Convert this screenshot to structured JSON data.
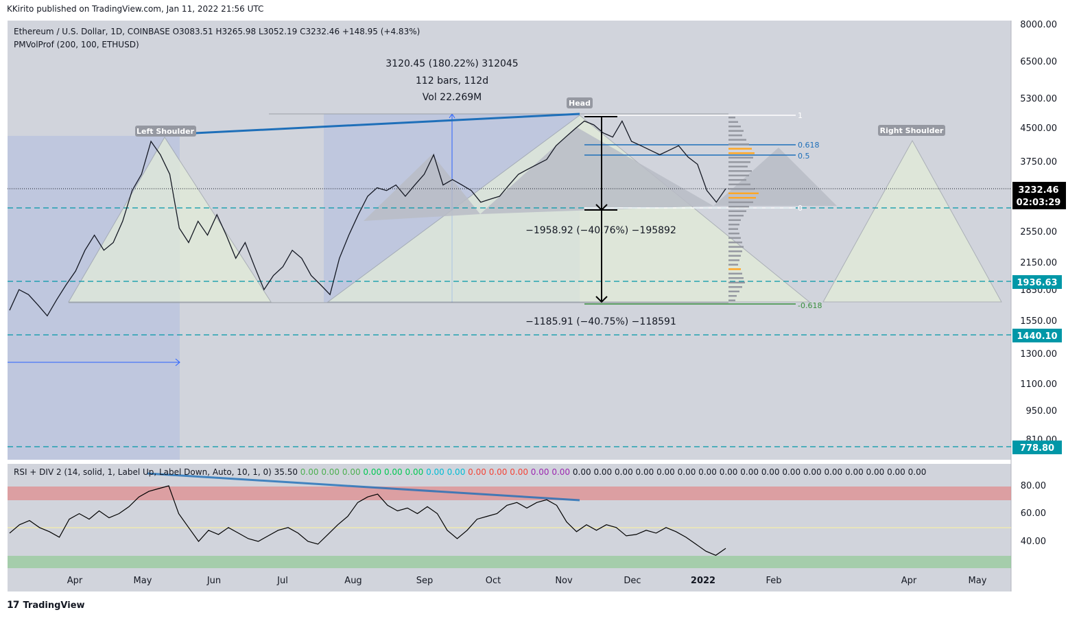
{
  "publisher_line": "KKirito published on TradingView.com, Jan 11, 2022 21:56 UTC",
  "symbol_line": "Ethereum / U.S. Dollar, 1D, COINBASE  O3083.51  H3265.98  L3052.19  C3232.46  +148.95 (+4.83%)",
  "indicator_line": "PMVolProf (200, 100, ETHUSD)",
  "rsi_title": "RSI + DIV 2 (14, solid, 1, Label Up, Label Down, Auto, 10, 1, 0)",
  "rsi_values": [
    {
      "text": "35.50",
      "color": "#131722"
    },
    {
      "text": "0.00",
      "color": "#4caf50"
    },
    {
      "text": "0.00",
      "color": "#4caf50"
    },
    {
      "text": "0.00",
      "color": "#4caf50"
    },
    {
      "text": "0.00",
      "color": "#00c853"
    },
    {
      "text": "0.00",
      "color": "#00c853"
    },
    {
      "text": "0.00",
      "color": "#00c853"
    },
    {
      "text": "0.00",
      "color": "#00bcd4"
    },
    {
      "text": "0.00",
      "color": "#00bcd4"
    },
    {
      "text": "0.00",
      "color": "#f44336"
    },
    {
      "text": "0.00",
      "color": "#f44336"
    },
    {
      "text": "0.00",
      "color": "#f44336"
    },
    {
      "text": "0.00",
      "color": "#9c27b0"
    },
    {
      "text": "0.00",
      "color": "#9c27b0"
    },
    {
      "text": "0.00",
      "color": "#131722"
    },
    {
      "text": "0.00",
      "color": "#131722"
    },
    {
      "text": "0.00",
      "color": "#131722"
    },
    {
      "text": "0.00",
      "color": "#131722"
    },
    {
      "text": "0.00",
      "color": "#131722"
    },
    {
      "text": "0.00",
      "color": "#131722"
    },
    {
      "text": "0.00",
      "color": "#131722"
    },
    {
      "text": "0.00",
      "color": "#131722"
    },
    {
      "text": "0.00",
      "color": "#131722"
    },
    {
      "text": "0.00",
      "color": "#131722"
    },
    {
      "text": "0.00",
      "color": "#131722"
    },
    {
      "text": "0.00",
      "color": "#131722"
    },
    {
      "text": "0.00",
      "color": "#131722"
    },
    {
      "text": "0.00",
      "color": "#131722"
    },
    {
      "text": "0.00",
      "color": "#131722"
    },
    {
      "text": "0.00",
      "color": "#131722"
    },
    {
      "text": "0.00",
      "color": "#131722"
    }
  ],
  "annotations": {
    "measure_line1": "3120.45 (180.22%) 312045",
    "measure_line2": "112 bars, 112d",
    "measure_line3": "Vol 22.269M",
    "drop1": "−1958.92 (−40.76%) −195892",
    "drop2": "−1185.91 (−40.75%) −118591",
    "left_shoulder": "Left Shoulder",
    "head": "Head",
    "right_shoulder": "Right Shoulder",
    "fib_1": "1",
    "fib_0618": "0.618",
    "fib_05": "0.5",
    "fib_0": "0",
    "fib_neg0618": "-0.618"
  },
  "price_badges": {
    "last_price": "3232.46",
    "countdown": "02:03:29",
    "level_1": "1936.63",
    "level_2": "1440.10",
    "level_3": "778.80"
  },
  "footer_brand": "TradingView",
  "colors": {
    "pane_bg": "#d1d4dc",
    "rsi_upper_band": "#e57373",
    "rsi_lower_band": "#81c784",
    "dashed_levels": "#0097a7",
    "trend_blue": "#1e6fb9",
    "fib_blue": "#1e6fb9",
    "neg_fib_green": "#4caf50"
  },
  "chart_data": {
    "type": "line",
    "price_axis_ticks": [
      "8000.00",
      "6500.00",
      "5300.00",
      "4500.00",
      "3750.00",
      "2550.00",
      "2150.00",
      "1850.00",
      "1550.00",
      "1300.00",
      "1100.00",
      "950.00",
      "810.00"
    ],
    "rsi_axis_ticks": [
      "80.00",
      "60.00",
      "40.00"
    ],
    "time_axis_labels": [
      "Apr",
      "May",
      "Jun",
      "Jul",
      "Aug",
      "Sep",
      "Oct",
      "Nov",
      "Dec",
      "2022",
      "Feb",
      "Apr",
      "May"
    ],
    "price_scale": "log",
    "ylim": [
      700,
      8000
    ],
    "rsi_ylim": [
      20,
      90
    ],
    "series": [
      {
        "values": [
          1650,
          1850,
          1800,
          1700,
          1600,
          1750,
          1900,
          2050,
          2300,
          2500,
          2300,
          2400,
          2700,
          3200,
          3500,
          4200,
          3900,
          3500,
          2600,
          2400,
          2700,
          2500,
          2800,
          2500,
          2200,
          2400,
          2100,
          1850,
          2000,
          2100,
          2300,
          2200,
          2000,
          1900,
          1800,
          2200,
          2500,
          2800,
          3100,
          3250,
          3200,
          3300,
          3100,
          3300,
          3500,
          3900,
          3300,
          3400,
          3300,
          3200,
          3000,
          3050,
          3100,
          3300,
          3500,
          3600,
          3700,
          3800,
          4100,
          4300,
          4500,
          4700,
          4600,
          4400,
          4300,
          4700,
          4200,
          4100,
          4000,
          3900,
          4000,
          4100,
          3850,
          3700,
          3200,
          3000,
          3232
        ]
      },
      {
        "values": [
          46,
          52,
          55,
          50,
          47,
          43,
          56,
          60,
          56,
          62,
          57,
          60,
          65,
          72,
          76,
          78,
          80,
          60,
          50,
          40,
          48,
          45,
          50,
          46,
          42,
          40,
          44,
          48,
          50,
          46,
          40,
          38,
          45,
          52,
          58,
          68,
          72,
          74,
          66,
          62,
          64,
          60,
          65,
          60,
          48,
          42,
          48,
          56,
          58,
          60,
          66,
          68,
          64,
          68,
          70,
          66,
          54,
          47,
          52,
          48,
          52,
          50,
          44,
          45,
          48,
          46,
          50,
          47,
          43,
          38,
          33,
          30,
          35
        ]
      }
    ]
  }
}
